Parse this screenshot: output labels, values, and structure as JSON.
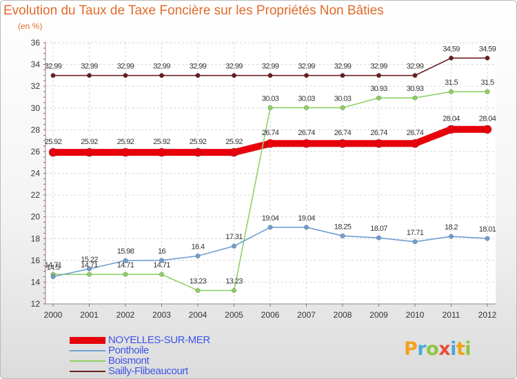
{
  "chart_data": {
    "type": "line",
    "title": "Evolution du Taux de Taxe Foncière sur les Propriétés Non Bâties",
    "ylabel": "(en %)",
    "xlabel": "",
    "categories": [
      "2000",
      "2001",
      "2002",
      "2003",
      "2004",
      "2005",
      "2006",
      "2007",
      "2008",
      "2009",
      "2010",
      "2011",
      "2012"
    ],
    "ylim": [
      12,
      36
    ],
    "yticks": [
      12,
      14,
      16,
      18,
      20,
      22,
      24,
      26,
      28,
      30,
      32,
      34,
      36
    ],
    "grid": true,
    "legend_position": "bottom-left",
    "series": [
      {
        "name": "NOYELLES-SUR-MER",
        "color": "#e8000b",
        "values": [
          25.92,
          25.92,
          25.92,
          25.92,
          25.92,
          25.92,
          26.74,
          26.74,
          26.74,
          26.74,
          26.74,
          28.04,
          28.04
        ],
        "labels": [
          "25.92",
          "25.92",
          "25.92",
          "25.92",
          "25.92",
          "25.92",
          "26.74",
          "26.74",
          "26.74",
          "26.74",
          "26.74",
          "28.04",
          "28.04"
        ]
      },
      {
        "name": "Ponthoile",
        "color": "#6e9fd2",
        "values": [
          14.5,
          15.22,
          15.98,
          16,
          16.4,
          17.31,
          19.04,
          19.04,
          18.25,
          18.07,
          17.71,
          18.2,
          18.01
        ],
        "labels": [
          "14.5",
          "15.22",
          "15.98",
          "16",
          "16.4",
          "17.31",
          "19.04",
          "19.04",
          "18.25",
          "18.07",
          "17.71",
          "18.2",
          "18.01"
        ]
      },
      {
        "name": "Boismont",
        "color": "#8fd064",
        "values": [
          14.71,
          14.71,
          14.71,
          14.71,
          13.23,
          13.23,
          30.03,
          30.03,
          30.03,
          30.93,
          30.93,
          31.5,
          31.5
        ],
        "labels": [
          "14.71",
          "14.71",
          "14.71",
          "14.71",
          "13.23",
          "13.23",
          "30.03",
          "30.03",
          "30.03",
          "30.93",
          "30.93",
          "31.5",
          "31.5"
        ]
      },
      {
        "name": "Sailly-Flibeaucourt",
        "color": "#6b1d1d",
        "values": [
          32.99,
          32.99,
          32.99,
          32.99,
          32.99,
          32.99,
          32.99,
          32.99,
          32.99,
          32.99,
          32.99,
          34.59,
          34.59
        ],
        "labels": [
          "32.99",
          "32.99",
          "32.99",
          "32.99",
          "32.99",
          "32.99",
          "32.99",
          "32.99",
          "32.99",
          "32.99",
          "32.99",
          "34.59",
          "34.59"
        ]
      }
    ]
  },
  "logo": {
    "letters": [
      "P",
      "r",
      "o",
      "x",
      "i",
      "t",
      "i"
    ],
    "colors": [
      "#f0a21c",
      "#4aa8db",
      "#8ec641",
      "#e94e3c",
      "#4aa8db",
      "#f0a21c",
      "#8ec641"
    ]
  }
}
